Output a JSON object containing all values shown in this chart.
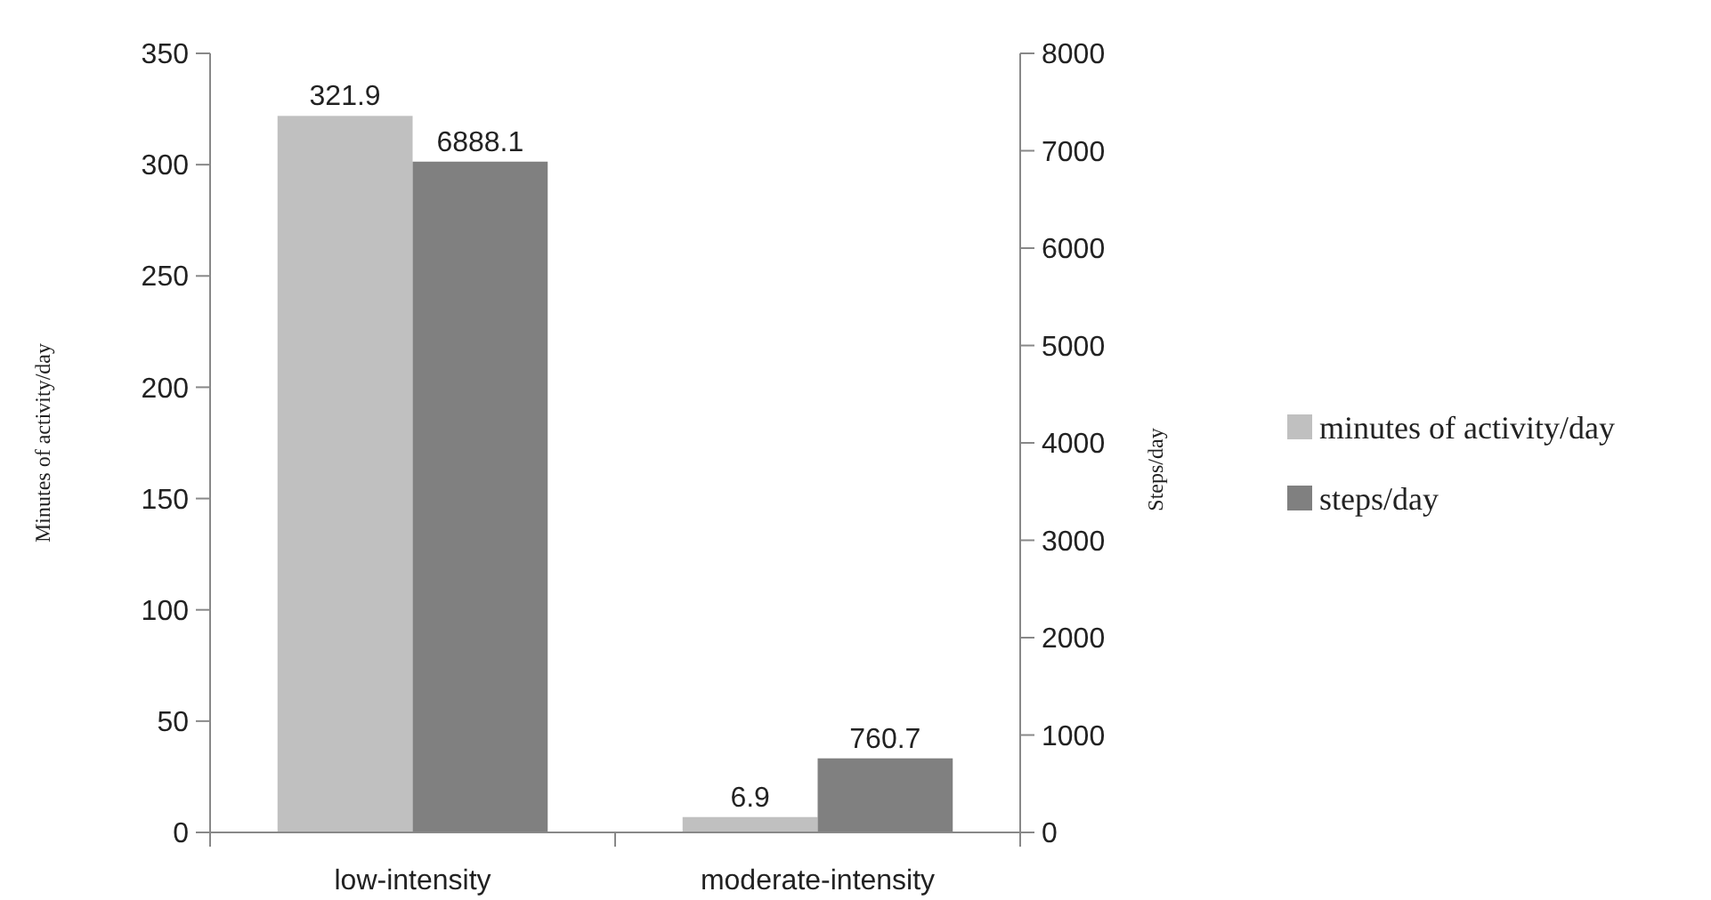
{
  "chart_data": {
    "type": "bar",
    "categories": [
      "low-intensity",
      "moderate-intensity"
    ],
    "series": [
      {
        "name": "minutes of activity/day",
        "color": "#c0c0c0",
        "values": [
          321.9,
          6.9
        ],
        "axis": "y"
      },
      {
        "name": "steps/day",
        "color": "#808080",
        "values": [
          6888.1,
          760.7
        ],
        "axis": "y2"
      }
    ],
    "ylabel": "Minutes of activity/day",
    "y2label": "Steps/day",
    "ylim": [
      0,
      350
    ],
    "yticks": [
      0,
      50,
      100,
      150,
      200,
      250,
      300,
      350
    ],
    "y2lim": [
      0,
      8000
    ],
    "y2ticks": [
      0,
      1000,
      2000,
      3000,
      4000,
      5000,
      6000,
      7000,
      8000
    ],
    "data_labels": true,
    "legend": "right",
    "grid": false
  }
}
